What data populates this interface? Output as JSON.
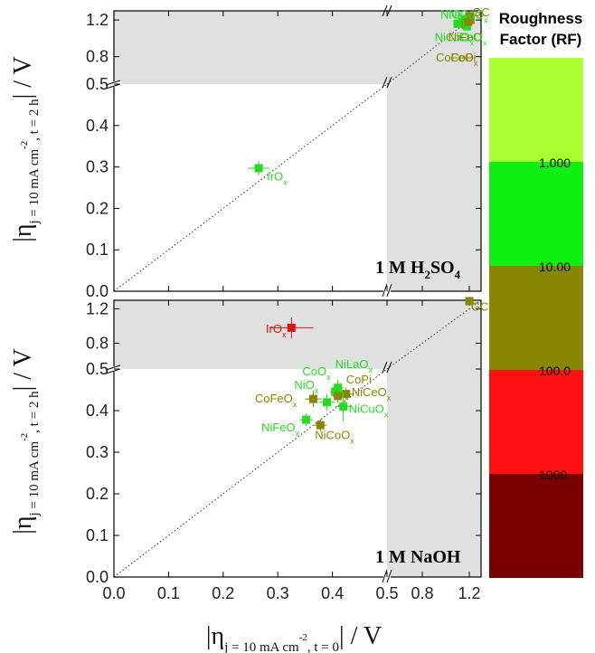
{
  "chart_data": {
    "type": "scatter",
    "x_axis": {
      "label_prefix": "|η",
      "label_subscript": "j = 10 mA cm",
      "label_sup": "-2",
      "label_subscript_tail": ", t = 0",
      "label_suffix": "| / V",
      "ticks_lower": [
        "0.0",
        "0.1",
        "0.2",
        "0.3",
        "0.4",
        "0.5"
      ],
      "ticks_upper": [
        "0.8",
        "1.2"
      ]
    },
    "y_axis": {
      "label_prefix": "|η",
      "label_subscript": "j = 10 mA cm",
      "label_sup": "-2",
      "label_subscript_tail": ", t = 2 h",
      "label_suffix": "| / V",
      "ticks_lower": [
        "0.0",
        "0.1",
        "0.2",
        "0.3",
        "0.4",
        "0.5"
      ],
      "ticks_upper": [
        "0.8",
        "1.2"
      ]
    },
    "panels": [
      {
        "label_main": "1 M H",
        "label_sub1": "2",
        "label_mid": "SO",
        "label_sub2": "4",
        "points": [
          {
            "name": "IrO",
            "sub": "x",
            "x": 0.265,
            "y": 0.297,
            "xerr": 0.02,
            "yerr": 0.018,
            "color": "#22dd22"
          },
          {
            "name": "GC",
            "sub": "",
            "x": 1.2,
            "y": 1.24,
            "xerr": 0,
            "yerr": 0,
            "color": "#888800"
          },
          {
            "name": "NiO",
            "sub": "x",
            "x": 1.1,
            "y": 1.16,
            "xerr": 0,
            "yerr": 0,
            "color": "#22dd22"
          },
          {
            "name": "NiCuO",
            "sub": "x",
            "x": 1.14,
            "y": 1.18,
            "xerr": 0,
            "yerr": 0,
            "color": "#22dd22"
          },
          {
            "name": "NiCoO",
            "sub": "x",
            "x": 1.16,
            "y": 1.21,
            "xerr": 0,
            "yerr": 0,
            "color": "#22dd22"
          },
          {
            "name": "NiFeO",
            "sub": "x",
            "x": 1.17,
            "y": 1.15,
            "xerr": 0,
            "yerr": 0,
            "color": "#888800"
          },
          {
            "name": "CoO",
            "sub": "x",
            "x": 1.18,
            "y": 1.13,
            "xerr": 0,
            "yerr": 0,
            "color": "#22dd22"
          },
          {
            "name": "CoFeO",
            "sub": "x",
            "x": 1.19,
            "y": 1.18,
            "xerr": 0,
            "yerr": 0,
            "color": "#888800"
          },
          {
            "name": "CoPi",
            "sub": "",
            "x": 1.21,
            "y": 1.2,
            "xerr": 0,
            "yerr": 0,
            "color": "#888800"
          }
        ],
        "labels": [
          {
            "name": "NiO",
            "sub": "x",
            "x": 0.955,
            "y": 1.215,
            "color": "#22dd22"
          },
          {
            "name": "NiCuO",
            "sub": "x",
            "x": 1.025,
            "y": 1.215,
            "color": "#22dd22"
          },
          {
            "name": "GC",
            "sub": "",
            "x": 1.225,
            "y": 1.24,
            "color": "#888800"
          },
          {
            "name": "NiCoO",
            "sub": "x",
            "x": 0.905,
            "y": 0.97,
            "color": "#22dd22"
          },
          {
            "name": "NiFeO",
            "sub": "",
            "x": 1.02,
            "y": 0.97,
            "color": "#888800"
          },
          {
            "name": "CoO",
            "sub": "x",
            "x": 1.11,
            "y": 0.97,
            "color": "#22dd22"
          },
          {
            "name": "CoFeO",
            "sub": "x",
            "x": 0.915,
            "y": 0.745,
            "color": "#888800"
          },
          {
            "name": "CoPi",
            "sub": "",
            "x": 1.04,
            "y": 0.745,
            "color": "#888800"
          },
          {
            "name": "IrO",
            "sub": "x",
            "x": 0.28,
            "y": 0.268,
            "color": "#22dd22"
          }
        ]
      },
      {
        "label_main": "1 M NaOH",
        "points": [
          {
            "name": "IrO",
            "sub": "x",
            "x": 0.325,
            "y": 0.98,
            "xerr": 0.04,
            "yerr": 0.12,
            "color": "#dd1111"
          },
          {
            "name": "GC",
            "sub": "",
            "x": 1.2,
            "y": 1.29,
            "xerr": 0,
            "yerr": 0,
            "color": "#888800"
          },
          {
            "name": "NiLaO",
            "sub": "x",
            "x": 0.41,
            "y": 0.455,
            "xerr": 0.01,
            "yerr": 0.02,
            "color": "#22dd22"
          },
          {
            "name": "CoO",
            "sub": "x",
            "x": 0.405,
            "y": 0.445,
            "xerr": 0.01,
            "yerr": 0.015,
            "color": "#22dd22"
          },
          {
            "name": "CoPi",
            "sub": "",
            "x": 0.425,
            "y": 0.44,
            "xerr": 0.015,
            "yerr": 0.015,
            "color": "#888800"
          },
          {
            "name": "NiO",
            "sub": "x",
            "x": 0.39,
            "y": 0.42,
            "xerr": 0.015,
            "yerr": 0.02,
            "color": "#22dd22"
          },
          {
            "name": "NiCeO",
            "sub": "x",
            "x": 0.41,
            "y": 0.435,
            "xerr": 0.01,
            "yerr": 0.015,
            "color": "#888800"
          },
          {
            "name": "CoFeO",
            "sub": "x",
            "x": 0.365,
            "y": 0.428,
            "xerr": 0.015,
            "yerr": 0.02,
            "color": "#888800"
          },
          {
            "name": "NiCuO",
            "sub": "x",
            "x": 0.42,
            "y": 0.41,
            "xerr": 0.015,
            "yerr": 0.035,
            "color": "#22dd22"
          },
          {
            "name": "NiFeO",
            "sub": "x",
            "x": 0.352,
            "y": 0.378,
            "xerr": 0.012,
            "yerr": 0.015,
            "color": "#22dd22"
          },
          {
            "name": "NiCoO",
            "sub": "x",
            "x": 0.378,
            "y": 0.365,
            "xerr": 0.012,
            "yerr": 0.015,
            "color": "#888800"
          }
        ],
        "labels": [
          {
            "name": "IrO",
            "sub": "x",
            "x": 0.278,
            "y": 0.92,
            "color": "#dd1111"
          },
          {
            "name": "GC",
            "sub": "",
            "x": 1.215,
            "y": 1.18,
            "color": "#888800"
          },
          {
            "name": "NiLaO",
            "sub": "x",
            "x": 0.405,
            "y": 0.508,
            "color": "#22dd22"
          },
          {
            "name": "CoO",
            "sub": "x",
            "x": 0.345,
            "y": 0.485,
            "color": "#22dd22"
          },
          {
            "name": "CoPi",
            "sub": "",
            "x": 0.425,
            "y": 0.465,
            "color": "#888800"
          },
          {
            "name": "NiO",
            "sub": "x",
            "x": 0.33,
            "y": 0.452,
            "color": "#22dd22"
          },
          {
            "name": "NiCeO",
            "sub": "x",
            "x": 0.435,
            "y": 0.435,
            "color": "#888800"
          },
          {
            "name": "CoFeO",
            "sub": "x",
            "x": 0.258,
            "y": 0.42,
            "color": "#888800"
          },
          {
            "name": "NiCuO",
            "sub": "x",
            "x": 0.43,
            "y": 0.395,
            "color": "#22dd22"
          },
          {
            "name": "NiFeO",
            "sub": "x",
            "x": 0.27,
            "y": 0.35,
            "color": "#22dd22"
          },
          {
            "name": "NiCoO",
            "sub": "x",
            "x": 0.368,
            "y": 0.332,
            "color": "#888800"
          }
        ]
      }
    ],
    "colorbar": {
      "title_line1": "Roughness",
      "title_line2": "Factor (RF)",
      "bands": [
        "#aaff33",
        "#11ee11",
        "#888800",
        "#ff1111",
        "#7a0000"
      ],
      "labels": [
        "1.000",
        "10.00",
        "100.0",
        "1000"
      ]
    }
  }
}
